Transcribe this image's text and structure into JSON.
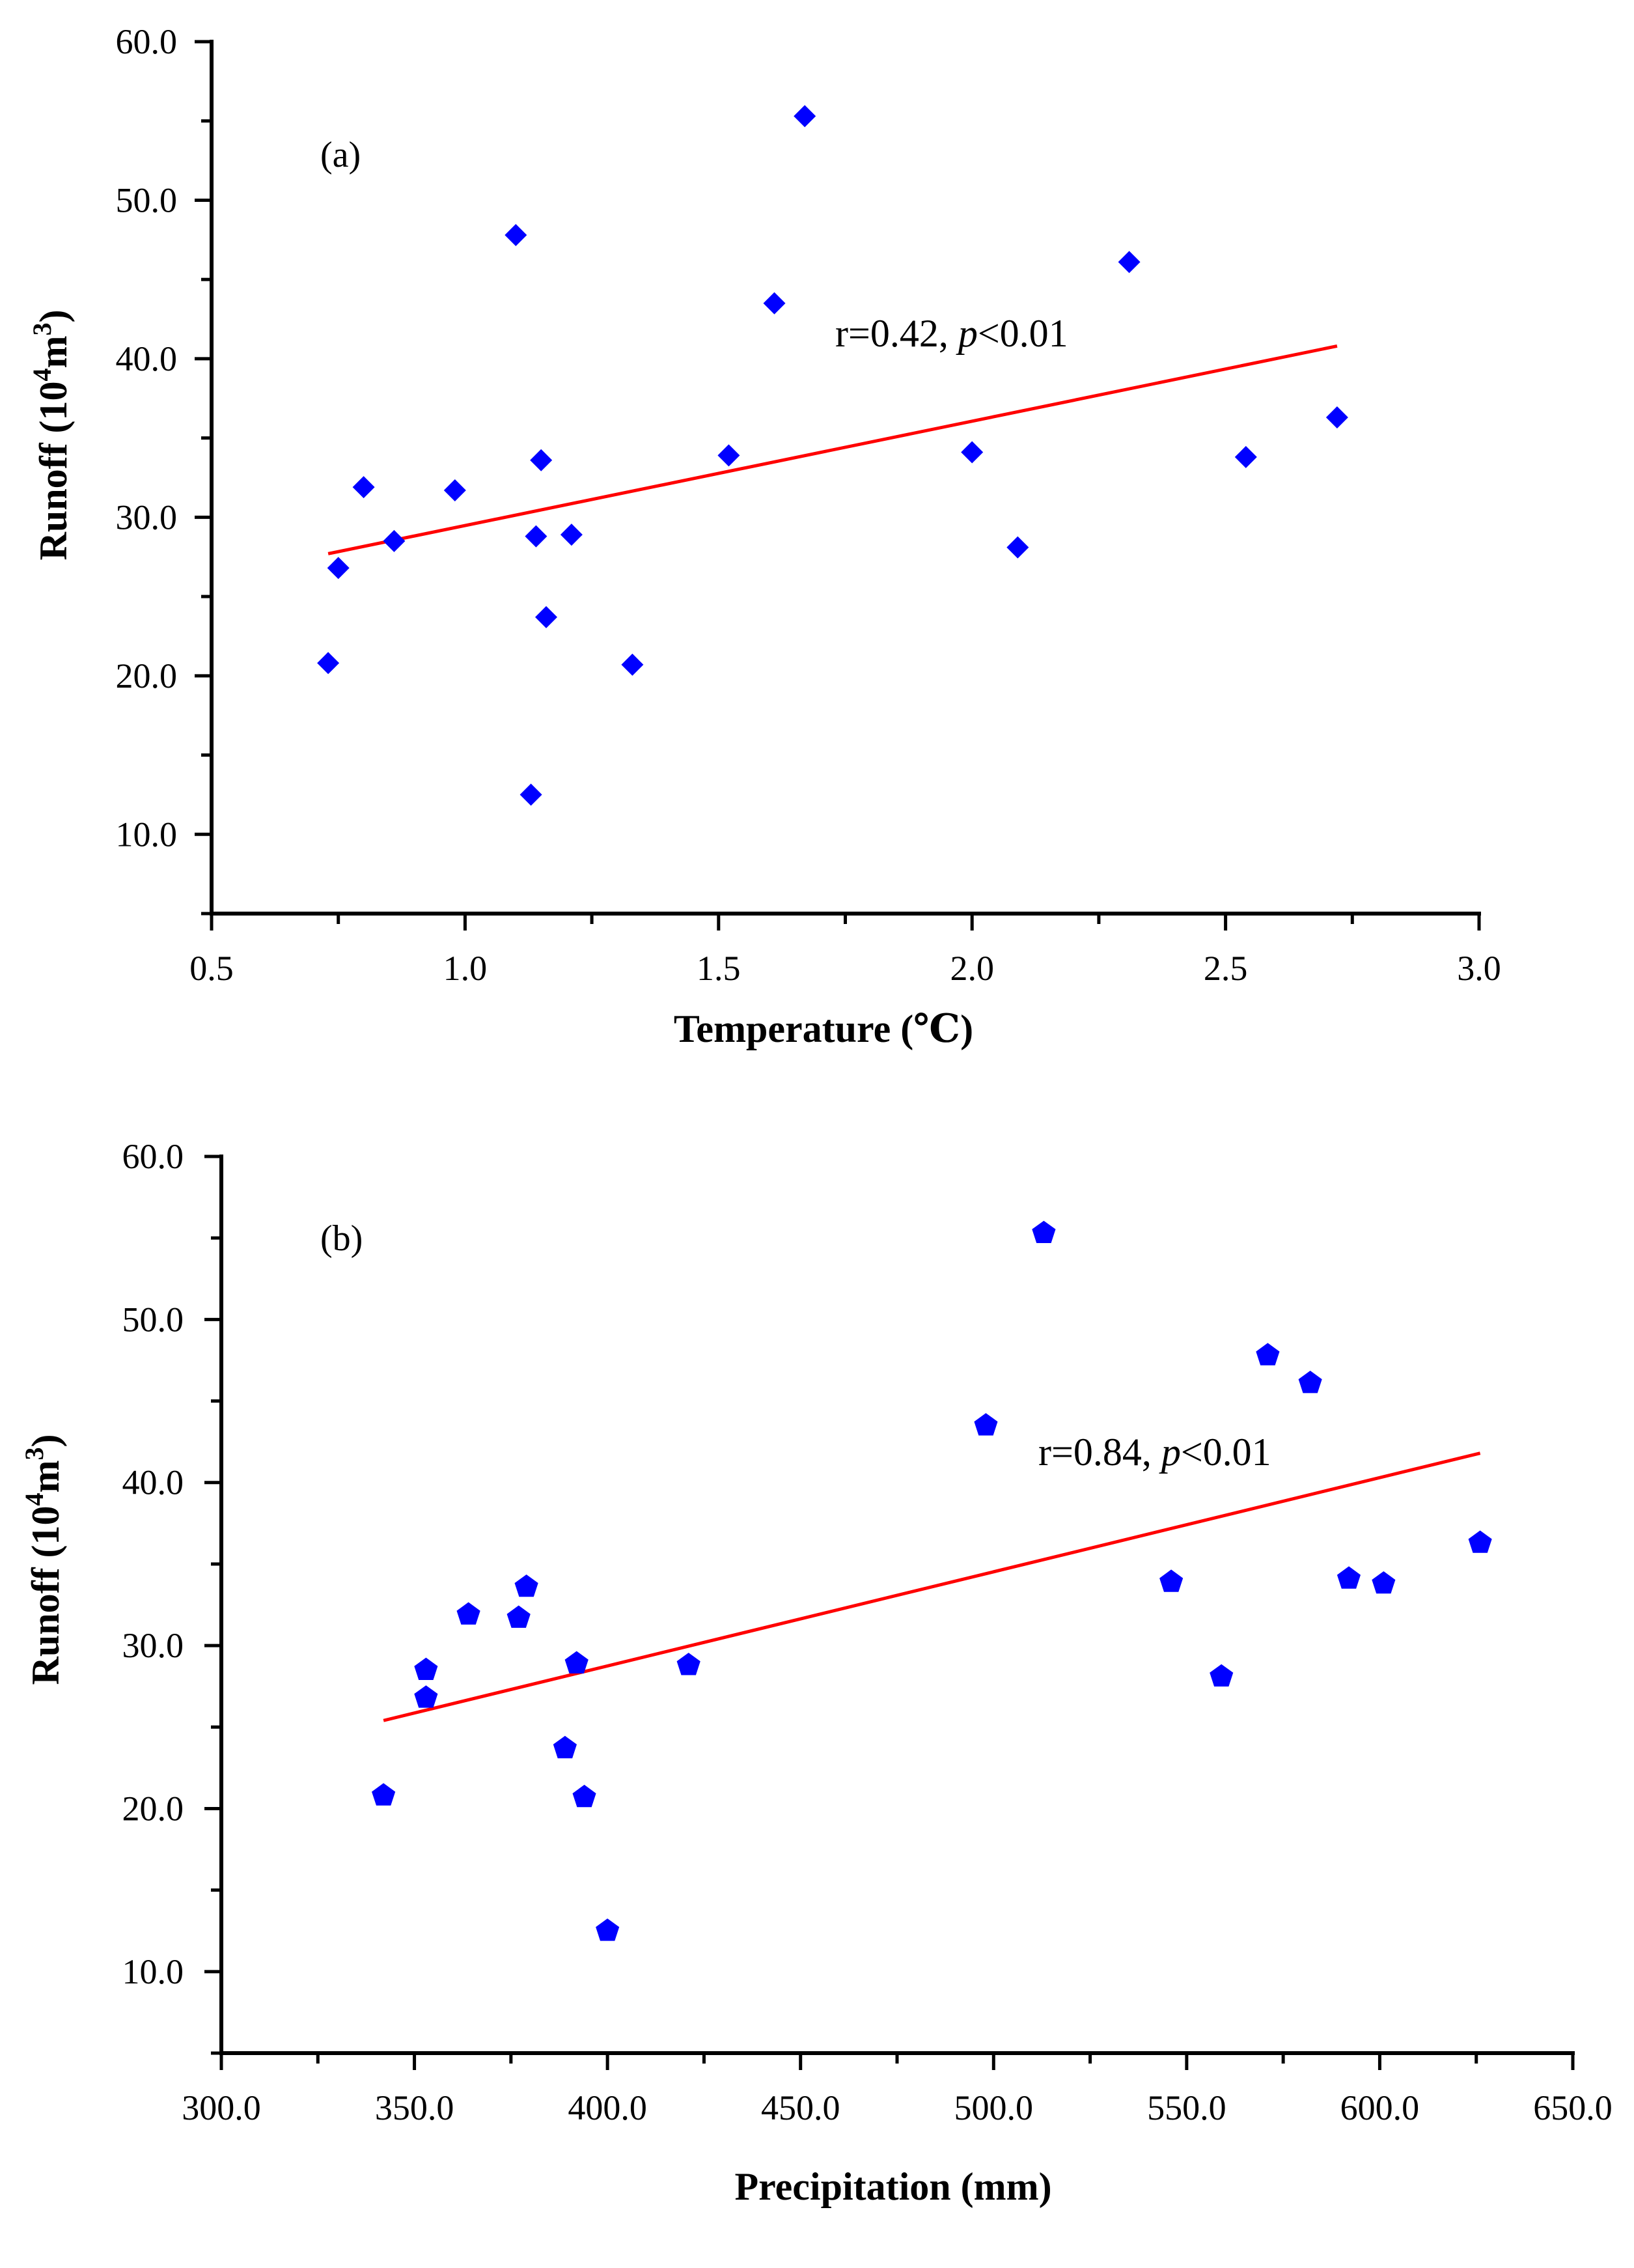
{
  "chart_data": [
    {
      "type": "scatter",
      "panel_label": "(a)",
      "xlabel": "Temperature (℃)",
      "ylabel": {
        "prefix": "Runoff (10",
        "sup1": "4",
        "mid": "m",
        "sup2": "3",
        "suffix": ")"
      },
      "xlim": [
        0.5,
        3.0
      ],
      "ylim": [
        5.0,
        60.0
      ],
      "xticks": [
        0.5,
        1.0,
        1.5,
        2.0,
        2.5,
        3.0
      ],
      "xtick_labels": [
        "0.5",
        "1.0",
        "1.5",
        "2.0",
        "2.5",
        "3.0"
      ],
      "yticks": [
        10.0,
        20.0,
        30.0,
        40.0,
        50.0,
        60.0
      ],
      "ytick_labels": [
        "10.0",
        "20.0",
        "30.0",
        "40.0",
        "50.0",
        "60.0"
      ],
      "marker": "diamond",
      "marker_color": "#0000ff",
      "points": [
        {
          "x": 0.73,
          "y": 20.8
        },
        {
          "x": 0.75,
          "y": 26.8
        },
        {
          "x": 0.8,
          "y": 31.9
        },
        {
          "x": 0.86,
          "y": 28.5
        },
        {
          "x": 0.98,
          "y": 31.7
        },
        {
          "x": 1.1,
          "y": 47.8
        },
        {
          "x": 1.13,
          "y": 12.5
        },
        {
          "x": 1.14,
          "y": 28.8
        },
        {
          "x": 1.15,
          "y": 33.6
        },
        {
          "x": 1.16,
          "y": 23.7
        },
        {
          "x": 1.21,
          "y": 28.9
        },
        {
          "x": 1.33,
          "y": 20.7
        },
        {
          "x": 1.52,
          "y": 33.9
        },
        {
          "x": 1.61,
          "y": 43.5
        },
        {
          "x": 1.67,
          "y": 55.3
        },
        {
          "x": 2.0,
          "y": 34.1
        },
        {
          "x": 2.09,
          "y": 28.1
        },
        {
          "x": 2.31,
          "y": 46.1
        },
        {
          "x": 2.54,
          "y": 33.8
        },
        {
          "x": 2.72,
          "y": 36.3
        }
      ],
      "fit": {
        "x": [
          0.73,
          2.72
        ],
        "y": [
          27.7,
          40.8
        ],
        "color": "#ff0000"
      },
      "annotation": {
        "prefix": "r=0.42, ",
        "italic": "p",
        "suffix": "<0.01"
      }
    },
    {
      "type": "scatter",
      "panel_label": "(b)",
      "xlabel": "Precipitation (mm)",
      "ylabel": {
        "prefix": "Runoff (10",
        "sup1": "4",
        "mid": "m",
        "sup2": "3",
        "suffix": ")"
      },
      "xlim": [
        300.0,
        650.0
      ],
      "ylim": [
        5.0,
        60.0
      ],
      "xticks": [
        300,
        350,
        400,
        450,
        500,
        550,
        600,
        650
      ],
      "xtick_labels": [
        "300.0",
        "350.0",
        "400.0",
        "450.0",
        "500.0",
        "550.0",
        "600.0",
        "650.0"
      ],
      "yticks": [
        10.0,
        20.0,
        30.0,
        40.0,
        50.0,
        60.0
      ],
      "ytick_labels": [
        "10.0",
        "20.0",
        "30.0",
        "40.0",
        "50.0",
        "60.0"
      ],
      "marker": "pentagon",
      "marker_color": "#0000ff",
      "points": [
        {
          "x": 342,
          "y": 20.8
        },
        {
          "x": 353,
          "y": 26.8
        },
        {
          "x": 353,
          "y": 28.5
        },
        {
          "x": 364,
          "y": 31.9
        },
        {
          "x": 377,
          "y": 31.7
        },
        {
          "x": 379,
          "y": 33.6
        },
        {
          "x": 389,
          "y": 23.7
        },
        {
          "x": 392,
          "y": 28.9
        },
        {
          "x": 394,
          "y": 20.7
        },
        {
          "x": 400,
          "y": 12.5
        },
        {
          "x": 421,
          "y": 28.8
        },
        {
          "x": 498,
          "y": 43.5
        },
        {
          "x": 513,
          "y": 55.3
        },
        {
          "x": 546,
          "y": 33.9
        },
        {
          "x": 559,
          "y": 28.1
        },
        {
          "x": 571,
          "y": 47.8
        },
        {
          "x": 582,
          "y": 46.1
        },
        {
          "x": 592,
          "y": 34.1
        },
        {
          "x": 601,
          "y": 33.8
        },
        {
          "x": 626,
          "y": 36.3
        }
      ],
      "fit": {
        "x": [
          342,
          626
        ],
        "y": [
          25.4,
          41.8
        ],
        "color": "#ff0000"
      },
      "annotation": {
        "prefix": "r=0.84, ",
        "italic": "p",
        "suffix": "<0.01"
      }
    }
  ]
}
